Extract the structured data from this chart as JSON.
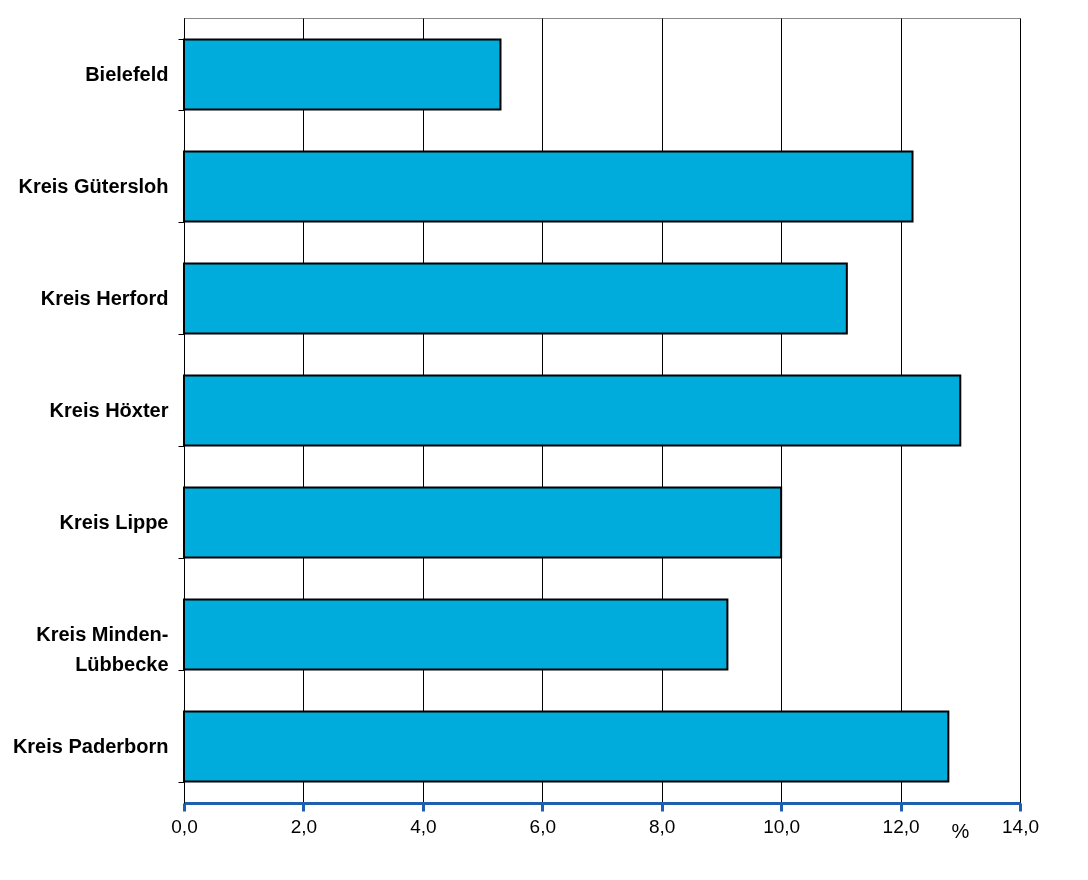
{
  "chart_data": {
    "type": "bar",
    "orientation": "horizontal",
    "xlabel": "%",
    "categories": [
      "Bielefeld",
      "Kreis Gütersloh",
      "Kreis Herford",
      "Kreis Höxter",
      "Kreis Lippe",
      "Kreis Minden-Lübbecke",
      "Kreis Paderborn"
    ],
    "values": [
      5.3,
      12.2,
      11.1,
      13.0,
      10.0,
      9.1,
      12.8
    ],
    "color": "#00acdc",
    "xlim": [
      0,
      14
    ],
    "xticks": [
      {
        "value": 0,
        "label": "0,0"
      },
      {
        "value": 2,
        "label": "2,0"
      },
      {
        "value": 4,
        "label": "4,0"
      },
      {
        "value": 6,
        "label": "6,0"
      },
      {
        "value": 8,
        "label": "8,0"
      },
      {
        "value": 10,
        "label": "10,0"
      },
      {
        "value": 12,
        "label": "12,0"
      },
      {
        "value": 14,
        "label": "14,0"
      }
    ],
    "grid": "x"
  }
}
